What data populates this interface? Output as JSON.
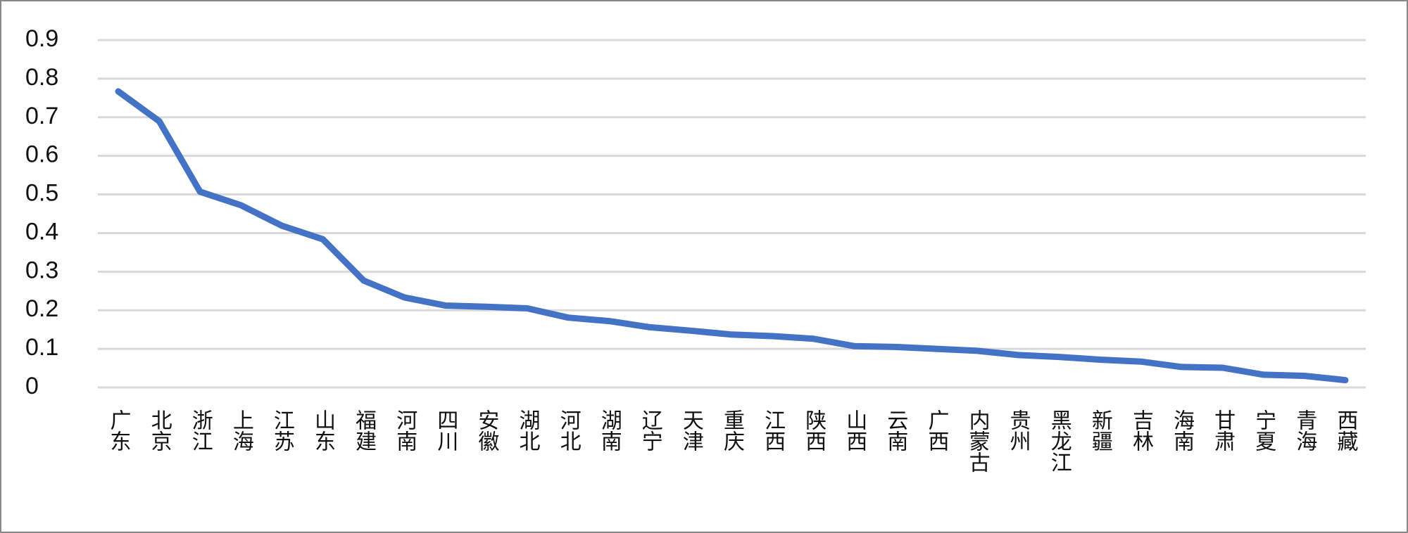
{
  "chart_data": {
    "type": "line",
    "categories": [
      "广东",
      "北京",
      "浙江",
      "上海",
      "江苏",
      "山东",
      "福建",
      "河南",
      "四川",
      "安徽",
      "湖北",
      "河北",
      "湖南",
      "辽宁",
      "天津",
      "重庆",
      "江西",
      "陕西",
      "山西",
      "云南",
      "广西",
      "内蒙古",
      "贵州",
      "黑龙江",
      "新疆",
      "吉林",
      "海南",
      "甘肃",
      "宁夏",
      "青海",
      "西藏"
    ],
    "values": [
      0.767,
      0.69,
      0.507,
      0.472,
      0.419,
      0.384,
      0.277,
      0.233,
      0.212,
      0.209,
      0.205,
      0.181,
      0.172,
      0.156,
      0.147,
      0.137,
      0.133,
      0.126,
      0.107,
      0.105,
      0.1,
      0.095,
      0.084,
      0.079,
      0.072,
      0.067,
      0.053,
      0.051,
      0.033,
      0.03,
      0.019
    ],
    "color": "#4472c4",
    "ylim": [
      0,
      0.9
    ],
    "yticks": [
      0,
      0.1,
      0.2,
      0.3,
      0.4,
      0.5,
      0.6,
      0.7,
      0.8,
      0.9
    ],
    "grid": true
  }
}
